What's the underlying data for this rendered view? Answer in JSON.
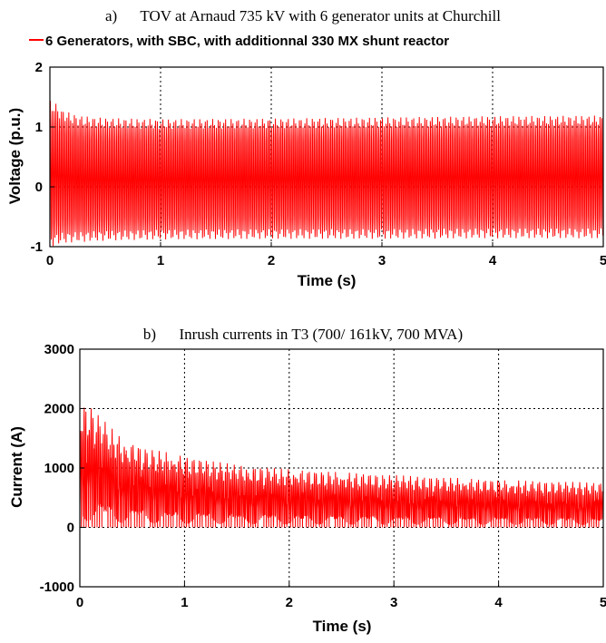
{
  "chart_data": [
    {
      "type": "line",
      "caption": "a)      TOV at Arnaud 735 kV with 6 generator units at Churchill",
      "legend": [
        "6 Generators, with SBC, with additionnal 330 MX shunt reactor"
      ],
      "xlabel": "Time (s)",
      "ylabel": "Voltage (p.u.)",
      "xlim": [
        0,
        5
      ],
      "ylim": [
        -1,
        2
      ],
      "xticks": [
        "0",
        "1",
        "2",
        "3",
        "4",
        "5"
      ],
      "yticks": [
        "-1",
        "0",
        "1",
        "2"
      ],
      "grid": true,
      "color": "#ff0000",
      "series": [
        {
          "name": "6 Generators, with SBC, with additionnal 330 MX shunt reactor",
          "envelope_t": [
            0,
            0.05,
            0.1,
            0.2,
            0.3,
            0.5,
            1,
            2,
            3,
            4,
            5
          ],
          "envelope_upper": [
            1.45,
            1.4,
            1.3,
            1.22,
            1.18,
            1.15,
            1.13,
            1.14,
            1.16,
            1.18,
            1.19
          ],
          "envelope_lower": [
            -1.0,
            -0.98,
            -0.95,
            -0.93,
            -0.92,
            -0.9,
            -0.88,
            -0.87,
            -0.87,
            -0.86,
            -0.86
          ]
        }
      ]
    },
    {
      "type": "line",
      "caption": "b)      Inrush currents in T3 (700/ 161kV, 700 MVA)",
      "xlabel": "Time (s)",
      "ylabel": "Current (A)",
      "xlim": [
        0,
        5
      ],
      "ylim": [
        -1000,
        3000
      ],
      "xticks": [
        "0",
        "1",
        "2",
        "3",
        "4",
        "5"
      ],
      "yticks": [
        "-1000",
        "0",
        "1000",
        "2000",
        "3000"
      ],
      "grid": true,
      "color": "#ff0000",
      "series": [
        {
          "envelope_t": [
            0,
            0.1,
            0.2,
            0.4,
            0.6,
            1,
            1.5,
            2,
            3,
            4,
            5
          ],
          "envelope_upper": [
            2100,
            2050,
            1850,
            1500,
            1350,
            1200,
            1050,
            980,
            880,
            800,
            750
          ],
          "envelope_lower": [
            0,
            0,
            0,
            0,
            0,
            0,
            0,
            0,
            0,
            0,
            0
          ]
        }
      ]
    }
  ]
}
